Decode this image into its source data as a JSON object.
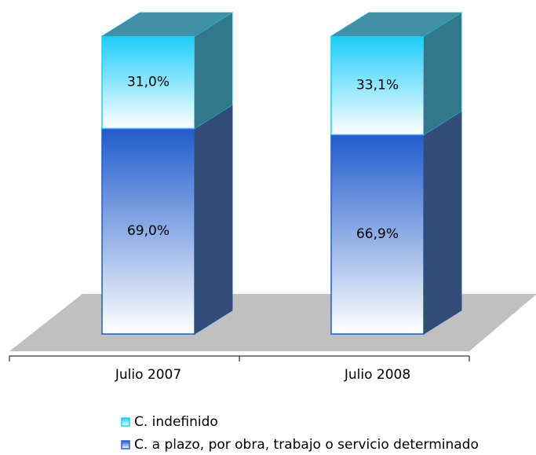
{
  "chart_data": {
    "type": "bar",
    "stacked": true,
    "categories": [
      "Julio 2007",
      "Julio 2008"
    ],
    "series": [
      {
        "name": "C. a plazo, por obra, trabajo o servicio determinado",
        "color": "#1f5ccc",
        "values": [
          69.0,
          66.9
        ],
        "value_labels": [
          "69,0%",
          "66,9%"
        ]
      },
      {
        "name": "C. indefinido",
        "color": "#1ccdfa",
        "values": [
          31.0,
          33.1
        ],
        "value_labels": [
          "31,0%",
          "33,1%"
        ]
      }
    ]
  }
}
